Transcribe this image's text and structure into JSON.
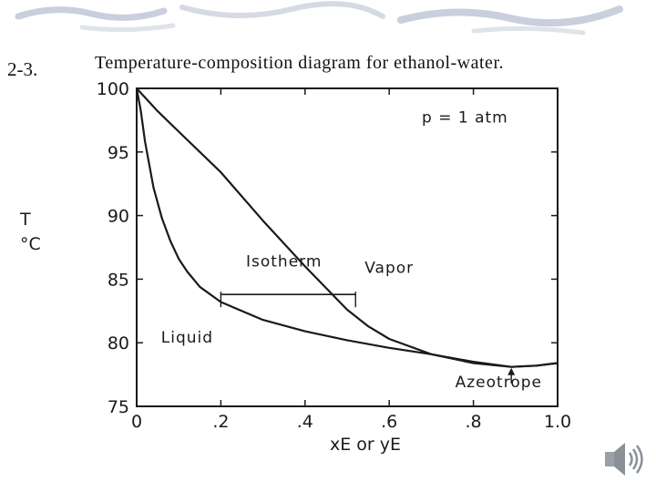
{
  "page": {
    "figure_label": "2-3.",
    "figure_title": "Temperature-composition diagram for ethanol-water."
  },
  "chart_data": {
    "type": "line",
    "title": "Temperature-composition diagram for ethanol-water.",
    "xlabel": "xE or yE",
    "ylabel": "T °C",
    "xlim": [
      0,
      1.0
    ],
    "ylim": [
      75,
      100
    ],
    "x_ticks": [
      0,
      0.2,
      0.4,
      0.6,
      0.8,
      1.0
    ],
    "x_tick_labels": [
      "0",
      ".2",
      ".4",
      ".6",
      ".8",
      "1.0"
    ],
    "y_ticks": [
      75,
      80,
      85,
      90,
      95,
      100
    ],
    "y_tick_labels": [
      "75",
      "80",
      "85",
      "90",
      "95",
      "100"
    ],
    "grid": false,
    "series": [
      {
        "name": "Liquid",
        "x": [
          0,
          0.01,
          0.02,
          0.04,
          0.06,
          0.08,
          0.1,
          0.12,
          0.15,
          0.2,
          0.3,
          0.4,
          0.5,
          0.6,
          0.7,
          0.8,
          0.89,
          0.95,
          1.0
        ],
        "y": [
          100,
          98.2,
          95.8,
          92.2,
          89.8,
          88.0,
          86.6,
          85.6,
          84.4,
          83.2,
          81.8,
          80.9,
          80.2,
          79.6,
          79.1,
          78.5,
          78.1,
          78.2,
          78.4
        ]
      },
      {
        "name": "Vapor",
        "x": [
          0,
          0.05,
          0.1,
          0.2,
          0.3,
          0.4,
          0.5,
          0.55,
          0.6,
          0.7,
          0.8,
          0.89,
          0.95,
          1.0
        ],
        "y": [
          100,
          98.2,
          96.6,
          93.4,
          89.6,
          86.0,
          82.6,
          81.3,
          80.3,
          79.1,
          78.4,
          78.1,
          78.2,
          78.4
        ]
      }
    ],
    "annotations": [
      {
        "label": "p = 1 atm",
        "x": 0.78,
        "y": 97.3
      },
      {
        "label": "Vapor",
        "x": 0.6,
        "y": 85.5
      },
      {
        "label": "Isotherm",
        "x": 0.35,
        "y": 86.0
      },
      {
        "label": "Liquid",
        "x": 0.12,
        "y": 80.0
      },
      {
        "label": "Azeotrope",
        "x": 0.86,
        "y": 76.5
      }
    ],
    "isotherm": {
      "x1": 0.2,
      "x2": 0.52,
      "y": 83.8
    },
    "azeotrope_point": {
      "x": 0.89,
      "y": 78.1
    }
  },
  "style": {
    "line_color": "#1a1a1a",
    "background": "#ffffff",
    "decoration_color": "#c9cfdc"
  }
}
